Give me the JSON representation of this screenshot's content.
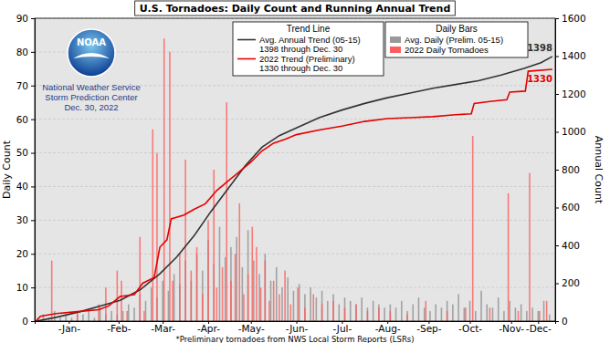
{
  "chart_data": {
    "type": "bar",
    "title": "U.S. Tornadoes: Daily Count and Running Annual Trend",
    "logo_text": "NOAA",
    "annotations": [
      "National Weather Service",
      "Storm Prediction Center",
      "Dec. 30, 2022"
    ],
    "footnote": "*Preliminary tornadoes from NWS Local Storm Reports (LSRs)",
    "y_label": "Daily Count",
    "y2_label": "Annual Count",
    "grid": true,
    "xlim": [
      0,
      366
    ],
    "xticks": [
      {
        "value": 24,
        "label": "-Jan-"
      },
      {
        "value": 59,
        "label": "-Feb-"
      },
      {
        "value": 90,
        "label": "-Mar-"
      },
      {
        "value": 122,
        "label": "-Apr-"
      },
      {
        "value": 152,
        "label": "-May-"
      },
      {
        "value": 184,
        "label": "-Jun-"
      },
      {
        "value": 216,
        "label": "-Jul-"
      },
      {
        "value": 248,
        "label": "-Aug-"
      },
      {
        "value": 277,
        "label": "-Sep-"
      },
      {
        "value": 306,
        "label": "-Oct-"
      },
      {
        "value": 335,
        "label": "-Nov-"
      },
      {
        "value": 354,
        "label": "-Dec-"
      }
    ],
    "ylim": [
      0,
      90
    ],
    "yticks": [
      0,
      10,
      20,
      30,
      40,
      50,
      60,
      70,
      80,
      90
    ],
    "y2lim": [
      0,
      1600
    ],
    "y2ticks": [
      0,
      200,
      400,
      600,
      800,
      1000,
      1200,
      1400,
      1600
    ],
    "series": [
      {
        "name": "Avg. Daily (Prelim. 05-15)",
        "type": "bar",
        "color": "#999999",
        "legend_group": "Daily Bars",
        "x": [
          2,
          6,
          10,
          14,
          18,
          22,
          26,
          30,
          34,
          38,
          42,
          46,
          50,
          54,
          58,
          62,
          66,
          70,
          74,
          78,
          82,
          86,
          90,
          94,
          98,
          102,
          106,
          110,
          114,
          118,
          122,
          126,
          130,
          134,
          138,
          142,
          146,
          150,
          154,
          158,
          162,
          166,
          170,
          174,
          178,
          182,
          186,
          190,
          194,
          198,
          202,
          206,
          210,
          214,
          218,
          222,
          226,
          230,
          234,
          238,
          242,
          246,
          250,
          254,
          258,
          262,
          266,
          270,
          274,
          278,
          282,
          286,
          290,
          294,
          298,
          302,
          306,
          310,
          314,
          318,
          322,
          326,
          330,
          334,
          338,
          342,
          346,
          350,
          354,
          358,
          362
        ],
        "values": [
          1,
          2,
          1,
          3,
          1,
          2,
          1,
          2,
          2,
          3,
          1,
          4,
          2,
          3,
          2,
          3,
          5,
          4,
          8,
          6,
          10,
          7,
          12,
          9,
          14,
          11,
          18,
          12,
          20,
          15,
          24,
          17,
          28,
          19,
          22,
          25,
          16,
          27,
          18,
          14,
          20,
          12,
          16,
          10,
          13,
          9,
          11,
          8,
          10,
          7,
          9,
          6,
          8,
          5,
          7,
          6,
          5,
          7,
          4,
          6,
          5,
          4,
          5,
          4,
          6,
          3,
          5,
          7,
          4,
          3,
          5,
          4,
          6,
          5,
          8,
          4,
          6,
          3,
          9,
          5,
          4,
          7,
          3,
          6,
          4,
          5,
          3,
          4,
          3,
          6,
          2
        ]
      },
      {
        "name": "2022 Daily Tornadoes",
        "type": "bar",
        "color": "#ff5c5c",
        "legend_group": "Daily Bars",
        "x": [
          12,
          30,
          45,
          50,
          58,
          61,
          65,
          74,
          77,
          83,
          86,
          91,
          95,
          97,
          102,
          106,
          110,
          114,
          118,
          122,
          126,
          128,
          132,
          135,
          138,
          141,
          144,
          147,
          150,
          153,
          156,
          159,
          162,
          165,
          168,
          172,
          176,
          180,
          185,
          190,
          196,
          202,
          210,
          218,
          226,
          234,
          242,
          250,
          262,
          275,
          290,
          303,
          308,
          320,
          333,
          340,
          348,
          355,
          360
        ],
        "values": [
          18,
          3,
          5,
          10,
          15,
          12,
          3,
          25,
          3,
          57,
          50,
          84,
          80,
          12,
          20,
          48,
          15,
          22,
          8,
          30,
          45,
          10,
          16,
          65,
          12,
          20,
          35,
          8,
          14,
          28,
          22,
          10,
          18,
          6,
          12,
          8,
          15,
          5,
          10,
          4,
          8,
          5,
          6,
          4,
          5,
          3,
          4,
          3,
          2,
          6,
          3,
          4,
          55,
          4,
          38,
          3,
          44,
          3,
          6
        ]
      },
      {
        "name": "Avg. Annual Trend (05-15)",
        "note": "1398 through Dec. 30",
        "type": "line",
        "axis": "y2",
        "color": "#333333",
        "legend_group": "Trend Line",
        "x": [
          1,
          15,
          32,
          46,
          60,
          74,
          88,
          100,
          112,
          124,
          136,
          148,
          160,
          172,
          184,
          200,
          216,
          232,
          248,
          264,
          280,
          296,
          312,
          328,
          344,
          356,
          364
        ],
        "values": [
          0,
          20,
          50,
          80,
          110,
          165,
          250,
          340,
          450,
          580,
          700,
          820,
          920,
          980,
          1020,
          1075,
          1115,
          1150,
          1180,
          1205,
          1230,
          1250,
          1270,
          1300,
          1335,
          1365,
          1398
        ]
      },
      {
        "name": "2022 Trend (Preliminary)",
        "note": "1330 through Dec. 30",
        "type": "line",
        "axis": "y2",
        "color": "#e60000",
        "legend_group": "Trend Line",
        "x": [
          1,
          4,
          15,
          30,
          45,
          52,
          60,
          70,
          76,
          84,
          88,
          93,
          96,
          105,
          112,
          120,
          128,
          136,
          144,
          152,
          160,
          168,
          176,
          184,
          200,
          216,
          232,
          248,
          264,
          280,
          296,
          307,
          309,
          320,
          332,
          334,
          345,
          347,
          364
        ],
        "values": [
          0,
          25,
          40,
          50,
          60,
          80,
          130,
          140,
          200,
          230,
          390,
          430,
          540,
          560,
          590,
          620,
          690,
          740,
          790,
          840,
          900,
          940,
          960,
          985,
          1010,
          1030,
          1055,
          1070,
          1075,
          1080,
          1090,
          1095,
          1150,
          1160,
          1170,
          1210,
          1215,
          1320,
          1330
        ]
      }
    ]
  }
}
